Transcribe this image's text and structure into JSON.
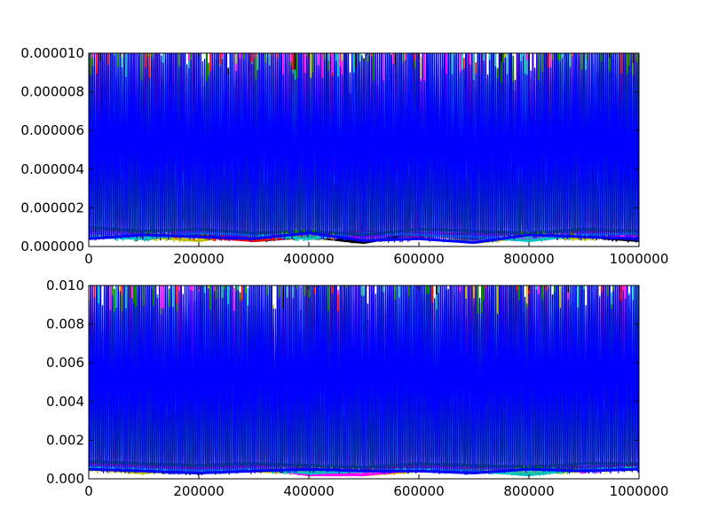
{
  "chart_data": [
    {
      "type": "line",
      "title": "",
      "xlabel": "",
      "ylabel": "",
      "xlim": [
        0,
        1000000
      ],
      "ylim": [
        0,
        1e-05
      ],
      "x_ticks": [
        0,
        200000,
        400000,
        600000,
        800000,
        1000000
      ],
      "x_tick_labels": [
        "0",
        "200000",
        "400000",
        "600000",
        "800000",
        "1000000"
      ],
      "y_ticks": [
        0,
        2e-06,
        4e-06,
        6e-06,
        8e-06,
        1e-05
      ],
      "y_tick_labels": [
        "0.000000",
        "0.000002",
        "0.000004",
        "0.000006",
        "0.000008",
        "0.000010"
      ],
      "grid": false,
      "legend": "none",
      "series": [
        {
          "color": "#000000",
          "baseline_y": [
            8e-07,
            4e-07,
            6e-07,
            3e-07,
            5e-07,
            2e-07,
            7e-07,
            4e-07,
            6e-07,
            5e-07,
            3e-07
          ]
        },
        {
          "color": "#bfbf00",
          "baseline_y": [
            6e-07,
            5e-07,
            3e-07,
            7e-07,
            4e-07,
            6e-07,
            8e-07,
            2e-07,
            5e-07,
            4e-07,
            6e-07
          ]
        },
        {
          "color": "#ff00ff",
          "baseline_y": [
            7e-07,
            6e-07,
            8e-07,
            4e-07,
            6e-07,
            5e-07,
            7e-07,
            6e-07,
            4e-07,
            7e-07,
            5e-07
          ]
        },
        {
          "color": "#ff0000",
          "baseline_y": [
            9e-07,
            7e-07,
            5e-07,
            3e-07,
            6e-07,
            8e-07,
            5e-07,
            7e-07,
            6e-07,
            8e-07,
            7e-07
          ]
        },
        {
          "color": "#00bfbf",
          "baseline_y": [
            5e-07,
            4e-07,
            7e-07,
            6e-07,
            4e-07,
            7e-07,
            6e-07,
            5e-07,
            3e-07,
            6e-07,
            7e-07
          ]
        },
        {
          "color": "#008000",
          "baseline_y": [
            1e-06,
            8e-07,
            9e-07,
            7e-07,
            8e-07,
            6e-07,
            9e-07,
            8e-07,
            7e-07,
            9e-07,
            8e-07
          ]
        },
        {
          "color": "#0000ff",
          "baseline_y": [
            4e-07,
            6e-07,
            5e-07,
            4e-07,
            7e-07,
            3e-07,
            4e-07,
            2e-07,
            6e-07,
            5e-07,
            4e-07
          ]
        }
      ],
      "dominant_series_color": "#0000ff",
      "dominant_series_range": [
        2e-07,
        1e-05
      ],
      "baseline_x": [
        0,
        100000,
        200000,
        300000,
        400000,
        500000,
        600000,
        700000,
        800000,
        900000,
        1000000
      ]
    },
    {
      "type": "line",
      "title": "",
      "xlabel": "",
      "ylabel": "",
      "xlim": [
        0,
        1000000
      ],
      "ylim": [
        0,
        0.01
      ],
      "x_ticks": [
        0,
        200000,
        400000,
        600000,
        800000,
        1000000
      ],
      "x_tick_labels": [
        "0",
        "200000",
        "400000",
        "600000",
        "800000",
        "1000000"
      ],
      "y_ticks": [
        0,
        0.002,
        0.004,
        0.006,
        0.008,
        0.01
      ],
      "y_tick_labels": [
        "0.000",
        "0.002",
        "0.004",
        "0.006",
        "0.008",
        "0.010"
      ],
      "grid": false,
      "legend": "none",
      "series": [
        {
          "color": "#000000",
          "baseline_y": [
            0.0006,
            0.0004,
            0.0003,
            0.0005,
            0.0004,
            0.0005,
            0.0006,
            0.0004,
            0.0005,
            0.0006,
            0.0007
          ]
        },
        {
          "color": "#bfbf00",
          "baseline_y": [
            0.0005,
            0.0003,
            0.0006,
            0.0004,
            0.0003,
            0.0002,
            0.0004,
            0.0005,
            0.0003,
            0.0004,
            0.0006
          ]
        },
        {
          "color": "#ff00ff",
          "baseline_y": [
            0.0007,
            0.0006,
            0.0005,
            0.0006,
            0.0002,
            0.0002,
            0.0005,
            0.0006,
            0.0005,
            0.0004,
            0.0006
          ]
        },
        {
          "color": "#ff0000",
          "baseline_y": [
            0.0008,
            0.0007,
            0.0006,
            0.0007,
            0.0006,
            0.0005,
            0.0007,
            0.0006,
            0.0007,
            0.0006,
            0.0007
          ]
        },
        {
          "color": "#00bfbf",
          "baseline_y": [
            0.0006,
            0.0005,
            0.0004,
            0.0005,
            0.0003,
            0.0004,
            0.0005,
            0.0004,
            0.0002,
            0.0005,
            0.0006
          ]
        },
        {
          "color": "#008000",
          "baseline_y": [
            0.0009,
            0.0008,
            0.0007,
            0.0008,
            0.0007,
            0.0006,
            0.0008,
            0.0007,
            0.0006,
            0.0008,
            0.0008
          ]
        },
        {
          "color": "#0000ff",
          "baseline_y": [
            0.0005,
            0.0004,
            0.0003,
            0.0004,
            0.0005,
            0.0004,
            0.0004,
            0.0003,
            0.0005,
            0.0004,
            0.0005
          ]
        }
      ],
      "dominant_series_color": "#0000ff",
      "dominant_series_range": [
        0.0002,
        0.01
      ],
      "baseline_x": [
        0,
        100000,
        200000,
        300000,
        400000,
        500000,
        600000,
        700000,
        800000,
        900000,
        1000000
      ]
    }
  ]
}
